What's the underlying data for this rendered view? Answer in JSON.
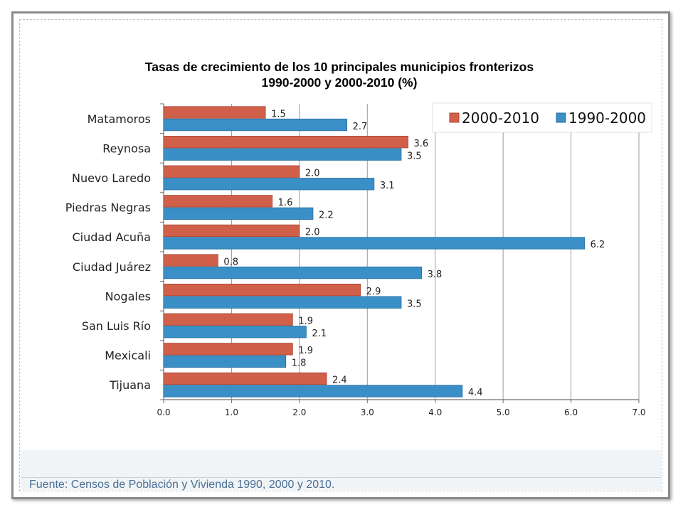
{
  "chart_data": {
    "type": "bar",
    "orientation": "horizontal",
    "title": "Tasas de crecimiento de los 10 principales municipios fronterizos",
    "subtitle": "1990-2000 y 2000-2010 (%)",
    "categories": [
      "Matamoros",
      "Reynosa",
      "Nuevo Laredo",
      "Piedras Negras",
      "Ciudad Acuña",
      "Ciudad Juárez",
      "Nogales",
      "San Luis Río",
      "Mexicali",
      "Tijuana"
    ],
    "series": [
      {
        "name": "2000-2010",
        "color": "#d0604a",
        "values": [
          1.5,
          3.6,
          2.0,
          1.6,
          2.0,
          0.8,
          2.9,
          1.9,
          1.9,
          2.4
        ],
        "labels": [
          "1.5",
          "3.6",
          "2.0",
          "1.6",
          "2.0",
          "0.8",
          "2.9",
          "1.9",
          "1.9",
          "2.4"
        ]
      },
      {
        "name": "1990-2000",
        "color": "#3a8fc7",
        "values": [
          2.7,
          3.5,
          3.1,
          2.2,
          6.2,
          3.8,
          3.5,
          2.1,
          1.8,
          4.4
        ],
        "labels": [
          "2.7",
          "3.5",
          "3.1",
          "2.2",
          "6.2",
          "3.8",
          "3.5",
          "2.1",
          "1.8",
          "4.4"
        ]
      }
    ],
    "xlim": [
      0,
      7
    ],
    "xticks": [
      "0.0",
      "1.0",
      "2.0",
      "3.0",
      "4.0",
      "5.0",
      "6.0",
      "7.0"
    ],
    "grid": true,
    "legend_position": "top-right"
  },
  "footer": {
    "source": "Fuente: Censos de Población y Vivienda 1990, 2000 y 2010."
  }
}
